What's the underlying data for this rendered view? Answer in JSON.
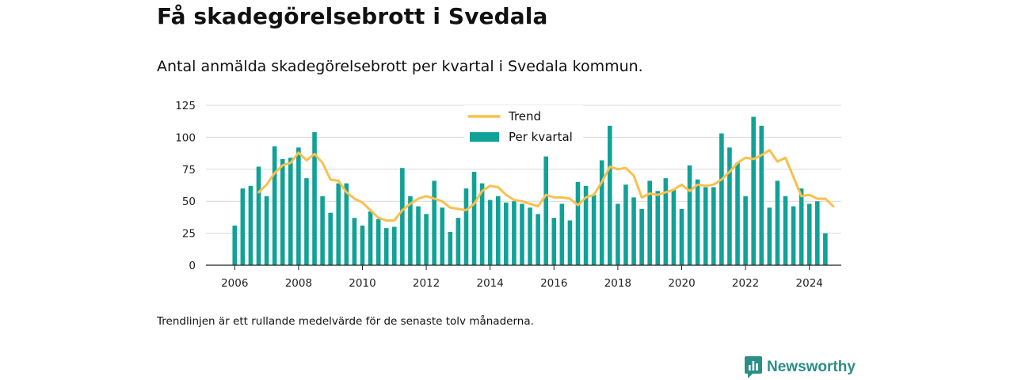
{
  "title": "Få skadegörelsebrott i Svedala",
  "subtitle": "Antal anmälda skadegörelsebrott per kvartal i Svedala kommun.",
  "footnote": "Trendlinjen är ett rullande medelvärde för de senaste tolv månaderna.",
  "brand": {
    "name": "Newsworthy",
    "icon": "newsworthy-logo-icon",
    "color": "#2a8f86"
  },
  "colors": {
    "bars": "#11a297",
    "trend": "#f9c04f",
    "grid": "#d9d9d9"
  },
  "chart_data": {
    "type": "bar",
    "x_axis": {
      "min": 2005.1,
      "max": 2025.0,
      "ticks": [
        2006,
        2008,
        2010,
        2012,
        2014,
        2016,
        2018,
        2020,
        2022,
        2024
      ]
    },
    "y_axis": {
      "min": 0,
      "max": 125,
      "ticks": [
        0,
        25,
        50,
        75,
        100,
        125
      ]
    },
    "grid": true,
    "legend": {
      "position": "top-center",
      "entries": [
        "Trend",
        "Per kvartal"
      ]
    },
    "series": [
      {
        "name": "Per kvartal",
        "type": "bar",
        "start": 2006.0,
        "step": 0.25,
        "values": [
          31,
          60,
          62,
          77,
          54,
          93,
          83,
          84,
          92,
          68,
          104,
          54,
          41,
          64,
          64,
          37,
          31,
          42,
          36,
          29,
          30,
          76,
          54,
          46,
          40,
          66,
          45,
          26,
          37,
          60,
          73,
          64,
          51,
          54,
          49,
          50,
          48,
          45,
          40,
          85,
          37,
          48,
          35,
          65,
          62,
          55,
          82,
          109,
          48,
          63,
          53,
          44,
          66,
          58,
          68,
          59,
          44,
          78,
          67,
          61,
          61,
          103,
          92,
          80,
          54,
          116,
          109,
          45,
          66,
          54,
          46,
          60,
          48,
          50,
          25
        ]
      },
      {
        "name": "Trend",
        "type": "line",
        "start": 2006.75,
        "step": 0.25,
        "values": [
          57,
          63,
          72,
          78,
          80,
          88,
          82,
          87,
          80,
          67,
          66,
          57,
          52,
          49,
          43,
          37,
          35,
          35,
          43,
          48,
          52,
          54,
          52,
          50,
          45,
          44,
          43,
          48,
          58,
          62,
          61,
          55,
          51,
          50,
          48,
          46,
          55,
          53,
          53,
          52,
          47,
          53,
          55,
          65,
          77,
          75,
          76,
          70,
          53,
          56,
          55,
          57,
          59,
          63,
          58,
          63,
          62,
          63,
          67,
          73,
          80,
          84,
          83,
          86,
          90,
          81,
          84,
          69,
          54,
          55,
          52,
          52,
          46
        ]
      }
    ]
  }
}
